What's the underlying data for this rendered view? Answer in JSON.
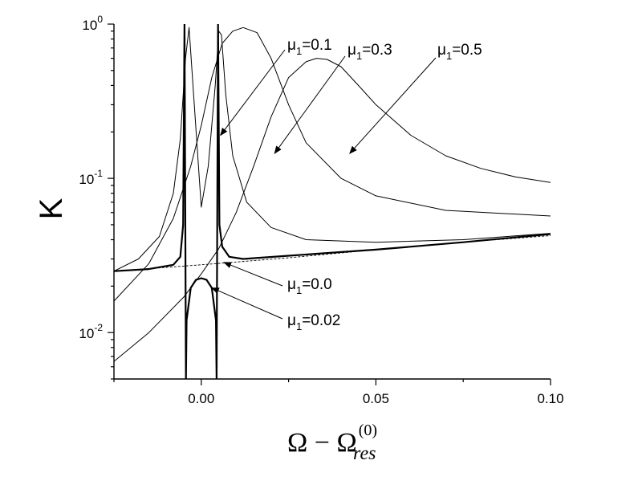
{
  "chart_data": {
    "type": "line",
    "ylabel": "K",
    "xlabel": {
      "main": "Ω − Ω",
      "sup": "(0)",
      "sub": "res"
    },
    "xlim": [
      -0.025,
      0.1
    ],
    "ylim": [
      0.005,
      1.0
    ],
    "yscale": "log",
    "x_ticks": [
      {
        "value": 0.0,
        "label": "0.00"
      },
      {
        "value": 0.05,
        "label": "0.05"
      },
      {
        "value": 0.1,
        "label": "0.10"
      }
    ],
    "y_ticks": [
      {
        "value": 0.01,
        "base": "10",
        "exp": "-2"
      },
      {
        "value": 0.1,
        "base": "10",
        "exp": "-1"
      },
      {
        "value": 1.0,
        "base": "10",
        "exp": "0"
      }
    ],
    "series": [
      {
        "name": "μ1=0.0",
        "style": "dashed",
        "x": [
          -0.025,
          0.0,
          0.025,
          0.05,
          0.075,
          0.1
        ],
        "y": [
          0.025,
          0.0275,
          0.0305,
          0.0345,
          0.0385,
          0.0425
        ]
      },
      {
        "name": "μ1=0.02",
        "style": "bold",
        "x": [
          -0.025,
          -0.015,
          -0.008,
          -0.006,
          -0.0052,
          -0.0048,
          -0.0044,
          -0.0042,
          -0.003,
          -0.0015,
          0.0,
          0.0015,
          0.003,
          0.0042,
          0.0044,
          0.0048,
          0.0052,
          0.006,
          0.008,
          0.012,
          0.025,
          0.05,
          0.075,
          0.1
        ],
        "y": [
          0.025,
          0.0258,
          0.0275,
          0.031,
          0.05,
          1.0,
          0.005,
          0.012,
          0.0195,
          0.022,
          0.0225,
          0.022,
          0.0195,
          0.012,
          0.005,
          1.0,
          0.05,
          0.036,
          0.031,
          0.03,
          0.0315,
          0.0345,
          0.0385,
          0.0435
        ]
      },
      {
        "name": "μ1=0.1",
        "style": "thin",
        "x": [
          -0.025,
          -0.018,
          -0.012,
          -0.008,
          -0.006,
          -0.0045,
          -0.0035,
          -0.002,
          0.0,
          0.002,
          0.004,
          0.005,
          0.0058,
          0.007,
          0.009,
          0.013,
          0.02,
          0.03,
          0.05,
          0.075,
          0.1
        ],
        "y": [
          0.025,
          0.03,
          0.042,
          0.08,
          0.18,
          0.6,
          0.95,
          0.3,
          0.065,
          0.12,
          0.4,
          0.9,
          0.85,
          0.35,
          0.14,
          0.07,
          0.048,
          0.04,
          0.0385,
          0.04,
          0.044
        ]
      },
      {
        "name": "μ1=0.3",
        "style": "thin",
        "x": [
          -0.025,
          -0.015,
          -0.008,
          -0.003,
          0.0,
          0.003,
          0.006,
          0.009,
          0.012,
          0.016,
          0.02,
          0.025,
          0.03,
          0.04,
          0.05,
          0.07,
          0.1
        ],
        "y": [
          0.016,
          0.028,
          0.055,
          0.12,
          0.22,
          0.45,
          0.75,
          0.9,
          0.95,
          0.88,
          0.6,
          0.3,
          0.17,
          0.1,
          0.077,
          0.062,
          0.057
        ]
      },
      {
        "name": "μ1=0.5",
        "style": "thin",
        "x": [
          -0.025,
          -0.015,
          -0.005,
          0.0,
          0.005,
          0.01,
          0.015,
          0.02,
          0.025,
          0.03,
          0.033,
          0.036,
          0.04,
          0.045,
          0.05,
          0.06,
          0.07,
          0.08,
          0.09,
          0.1
        ],
        "y": [
          0.0065,
          0.01,
          0.017,
          0.024,
          0.035,
          0.06,
          0.12,
          0.25,
          0.45,
          0.57,
          0.6,
          0.59,
          0.53,
          0.4,
          0.3,
          0.19,
          0.14,
          0.116,
          0.102,
          0.094
        ]
      }
    ],
    "annotations": [
      {
        "series": "μ1=0.1",
        "mu": "μ",
        "sub": "1",
        "value": "=0.1"
      },
      {
        "series": "μ1=0.3",
        "mu": "μ",
        "sub": "1",
        "value": "=0.3"
      },
      {
        "series": "μ1=0.5",
        "mu": "μ",
        "sub": "1",
        "value": "=0.5"
      },
      {
        "series": "μ1=0.0",
        "mu": "μ",
        "sub": "1",
        "value": "=0.0"
      },
      {
        "series": "μ1=0.02",
        "mu": "μ",
        "sub": "1",
        "value": "=0.02"
      }
    ]
  }
}
